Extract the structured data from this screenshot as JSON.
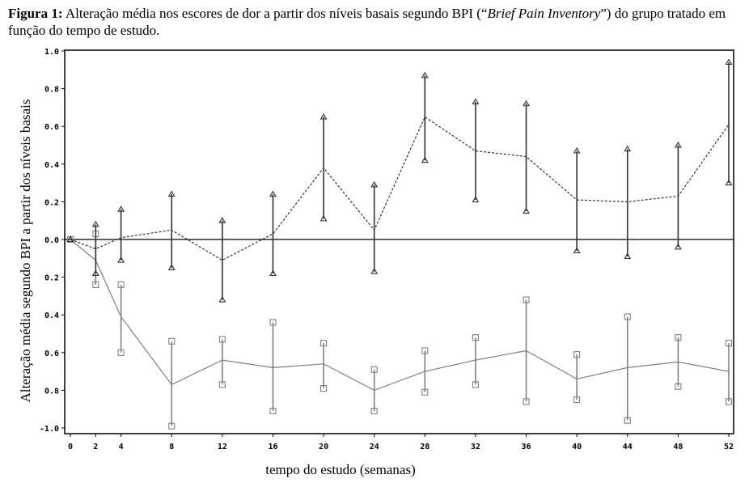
{
  "caption": {
    "label": "Figura 1:",
    "text_a": " Alteração média nos escores de dor a partir dos níveis basais segundo BPI (“",
    "text_italic": "Brief Pain Inventory",
    "text_b": "”) do grupo tratado em função do tempo de estudo."
  },
  "chart_data": {
    "type": "line",
    "xlabel": "tempo do estudo (semanas)",
    "ylabel": "Alteração média segundo BPI a partir dos níveis basais",
    "x": [
      0,
      2,
      4,
      8,
      12,
      16,
      20,
      24,
      28,
      32,
      36,
      40,
      44,
      48,
      52
    ],
    "x_tick_labels": [
      "0",
      "2",
      "4",
      "8",
      "12",
      "16",
      "20",
      "24",
      "28",
      "32",
      "36",
      "40",
      "44",
      "48",
      "52"
    ],
    "y_tick_labels": [
      "1.0",
      "0.8",
      "0.6",
      "0.4",
      "0.2",
      "0.0",
      "0.2",
      "0.4",
      "0.6",
      "0.8",
      "-1.0"
    ],
    "y_tick_values": [
      1.0,
      0.8,
      0.6,
      0.4,
      0.2,
      0.0,
      -0.2,
      -0.4,
      -0.6,
      -0.8,
      -1.0
    ],
    "ylim": [
      -1.0,
      1.0
    ],
    "reference_line_y": 0.0,
    "series": [
      {
        "marker": "triangle",
        "line_style": "dashed",
        "color": "#333333",
        "values": [
          0.0,
          -0.05,
          0.01,
          0.05,
          -0.11,
          0.03,
          0.38,
          0.05,
          0.65,
          0.47,
          0.44,
          0.21,
          0.2,
          0.23,
          0.61
        ],
        "upper": [
          0.0,
          0.08,
          0.16,
          0.24,
          0.1,
          0.24,
          0.65,
          0.29,
          0.87,
          0.73,
          0.72,
          0.47,
          0.48,
          0.5,
          0.94
        ],
        "lower": [
          0.0,
          -0.18,
          -0.11,
          -0.15,
          -0.32,
          -0.18,
          0.11,
          -0.17,
          0.42,
          0.21,
          0.15,
          -0.06,
          -0.09,
          -0.04,
          0.3
        ]
      },
      {
        "marker": "square",
        "line_style": "solid",
        "color": "#808080",
        "values": [
          0.0,
          -0.11,
          -0.41,
          -0.77,
          -0.64,
          -0.68,
          -0.66,
          -0.8,
          -0.7,
          -0.64,
          -0.59,
          -0.74,
          -0.68,
          -0.65,
          -0.7
        ],
        "upper": [
          0.0,
          0.03,
          -0.24,
          -0.54,
          -0.53,
          -0.44,
          -0.55,
          -0.69,
          -0.59,
          -0.52,
          -0.32,
          -0.61,
          -0.41,
          -0.52,
          -0.55
        ],
        "lower": [
          0.0,
          -0.24,
          -0.6,
          -0.99,
          -0.77,
          -0.91,
          -0.79,
          -0.91,
          -0.81,
          -0.77,
          -0.86,
          -0.85,
          -0.96,
          -0.78,
          -0.86
        ]
      }
    ]
  }
}
